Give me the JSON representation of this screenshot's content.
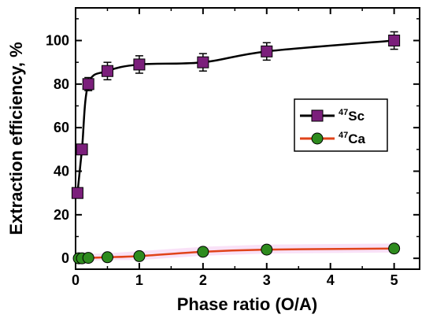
{
  "chart_data": {
    "type": "line",
    "xlabel": "Phase ratio (O/A)",
    "ylabel": "Extraction efficiency, %",
    "xlim": [
      0,
      5.4
    ],
    "ylim": [
      -5,
      115
    ],
    "x_ticks": [
      0,
      1,
      2,
      3,
      4,
      5
    ],
    "y_ticks": [
      0,
      20,
      40,
      60,
      80,
      100
    ],
    "grid": false,
    "legend_position": "right-middle",
    "series": [
      {
        "name": "47Sc",
        "legend_sup": "47",
        "legend_label": "Sc",
        "marker": "square",
        "marker_color": "#7b1f7b",
        "line_color": "#000000",
        "x": [
          0.03,
          0.1,
          0.2,
          0.5,
          1,
          2,
          3,
          5
        ],
        "y": [
          30,
          50,
          80,
          86,
          89,
          90,
          95,
          100
        ],
        "err": [
          2,
          2,
          3,
          4,
          4,
          4,
          4,
          4
        ]
      },
      {
        "name": "47Ca",
        "legend_sup": "47",
        "legend_label": "Ca",
        "marker": "circle",
        "marker_color": "#2e8b1e",
        "line_color": "#e0431a",
        "x": [
          0.05,
          0.1,
          0.2,
          0.5,
          1,
          2,
          3,
          5
        ],
        "y": [
          0,
          0,
          0.2,
          0.5,
          1,
          3,
          4,
          4.5
        ],
        "err": [
          1,
          1,
          1,
          1,
          1.5,
          1.5,
          1.5,
          1.5
        ]
      }
    ]
  }
}
